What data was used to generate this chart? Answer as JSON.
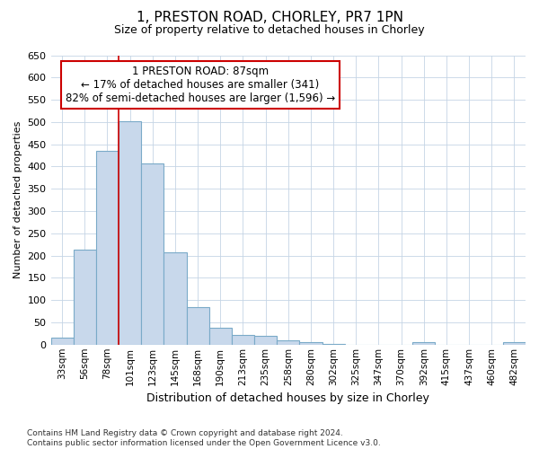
{
  "title_line1": "1, PRESTON ROAD, CHORLEY, PR7 1PN",
  "title_line2": "Size of property relative to detached houses in Chorley",
  "xlabel": "Distribution of detached houses by size in Chorley",
  "ylabel": "Number of detached properties",
  "footnote": "Contains HM Land Registry data © Crown copyright and database right 2024.\nContains public sector information licensed under the Open Government Licence v3.0.",
  "bar_labels": [
    "33sqm",
    "56sqm",
    "78sqm",
    "101sqm",
    "123sqm",
    "145sqm",
    "168sqm",
    "190sqm",
    "213sqm",
    "235sqm",
    "258sqm",
    "280sqm",
    "302sqm",
    "325sqm",
    "347sqm",
    "370sqm",
    "392sqm",
    "415sqm",
    "437sqm",
    "460sqm",
    "482sqm"
  ],
  "bar_values": [
    15,
    213,
    435,
    502,
    407,
    207,
    84,
    38,
    22,
    19,
    10,
    5,
    2,
    0,
    0,
    0,
    5,
    0,
    0,
    0,
    5
  ],
  "bar_color": "#c8d8eb",
  "bar_edge_color": "#7aaac8",
  "property_line_x": 2.5,
  "property_line_label": "1 PRESTON ROAD: 87sqm",
  "annotation_line2": "← 17% of detached houses are smaller (341)",
  "annotation_line3": "82% of semi-detached houses are larger (1,596) →",
  "ylim": [
    0,
    650
  ],
  "yticks": [
    0,
    50,
    100,
    150,
    200,
    250,
    300,
    350,
    400,
    450,
    500,
    550,
    600,
    650
  ],
  "background_color": "#ffffff",
  "plot_background_color": "#ffffff",
  "grid_color": "#c5d5e5",
  "red_line_color": "#cc0000",
  "annotation_box_color": "#ffffff",
  "annotation_box_edge": "#cc0000",
  "title1_fontsize": 11,
  "title2_fontsize": 9,
  "annot_fontsize": 8.5,
  "xlabel_fontsize": 9,
  "ylabel_fontsize": 8,
  "xtick_fontsize": 7.5,
  "ytick_fontsize": 8,
  "footnote_fontsize": 6.5
}
